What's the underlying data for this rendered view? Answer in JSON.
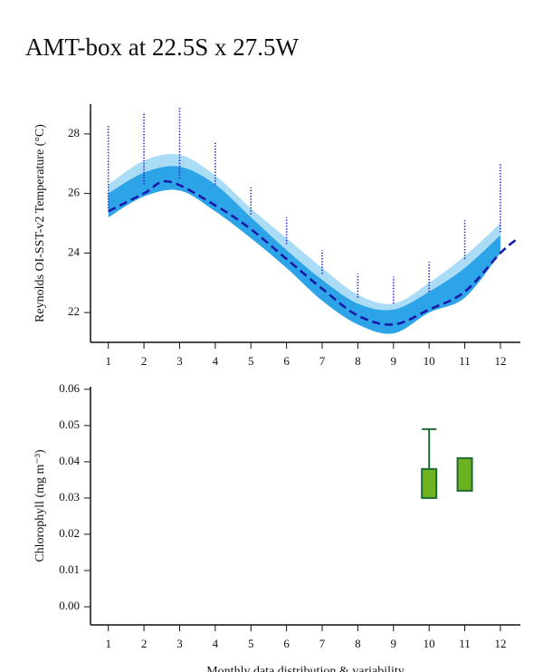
{
  "title": "AMT-box at 22.5S x 27.5W",
  "chart_data": [
    {
      "type": "band-line",
      "ylabel": "Reynolds OI-SST-v2 Temperature (°C)",
      "x": [
        1,
        2,
        3,
        4,
        5,
        6,
        7,
        8,
        9,
        10,
        11,
        12
      ],
      "xlim": [
        0.5,
        12.56
      ],
      "xticks": [
        1,
        2,
        3,
        4,
        5,
        6,
        7,
        8,
        9,
        10,
        11,
        12
      ],
      "ylim": [
        21,
        29
      ],
      "yticks": [
        22,
        24,
        26,
        28
      ],
      "bands": [
        {
          "color": "#aadcf5",
          "upper": [
            26.3,
            27.1,
            27.3,
            26.6,
            25.5,
            24.5,
            23.5,
            22.6,
            22.3,
            23.0,
            23.9,
            25.0
          ],
          "lower": [
            25.2,
            25.9,
            26.1,
            25.4,
            24.5,
            23.5,
            22.4,
            21.6,
            21.3,
            22.0,
            22.5,
            24.0
          ]
        },
        {
          "color": "#2ea4e8",
          "upper": [
            26.0,
            26.7,
            26.9,
            26.3,
            25.2,
            24.1,
            23.1,
            22.3,
            22.1,
            22.7,
            23.5,
            24.6
          ],
          "lower": [
            25.2,
            25.9,
            26.1,
            25.4,
            24.5,
            23.5,
            22.4,
            21.6,
            21.3,
            22.0,
            22.5,
            24.0
          ]
        }
      ],
      "mean": {
        "color": "#1a1aa8",
        "x": [
          1,
          2,
          2.7,
          4,
          5,
          6,
          7,
          8,
          9,
          10,
          11,
          12,
          12.5
        ],
        "values": [
          25.4,
          26.0,
          26.4,
          25.6,
          24.8,
          23.8,
          22.8,
          21.9,
          21.6,
          22.1,
          22.7,
          24.0,
          24.5
        ]
      },
      "points": {
        "color": "#2424c8",
        "low": [
          25.5,
          26.3,
          26.5,
          26.3,
          25.3,
          24.3,
          23.3,
          22.5,
          22.3,
          22.7,
          23.8,
          24.7
        ],
        "high": [
          28.3,
          28.7,
          28.9,
          27.7,
          26.2,
          25.2,
          24.1,
          23.3,
          23.2,
          23.7,
          25.1,
          27.0
        ]
      }
    },
    {
      "type": "box",
      "ylabel": "Chlorophyll (mg m⁻³)",
      "xlabel": "Monthly data distribution & variability",
      "xlim": [
        0.5,
        12.56
      ],
      "xticks": [
        1,
        2,
        3,
        4,
        5,
        6,
        7,
        8,
        9,
        10,
        11,
        12
      ],
      "ylim": [
        -0.005,
        0.0607
      ],
      "yticks": [
        {
          "value": 0,
          "label": "0.00"
        },
        0.01,
        0.02,
        0.03,
        0.04,
        0.05,
        {
          "value": 0.06,
          "label": "0.06"
        }
      ],
      "color": "#6db21f",
      "edge_color": "#1f6b33",
      "x": [
        10,
        11
      ],
      "q1": [
        0.03,
        0.032
      ],
      "q3": [
        0.038,
        0.041
      ],
      "whisker_high": [
        0.049,
        null
      ]
    }
  ]
}
